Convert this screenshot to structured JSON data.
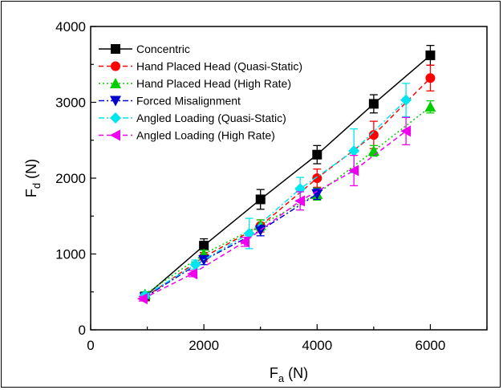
{
  "chart_data": {
    "type": "line",
    "xlabel_main": "F",
    "xlabel_sub": "a",
    "xlabel_unit": " (N)",
    "ylabel_main": "F",
    "ylabel_sub": "d",
    "ylabel_unit": " (N)",
    "xlim": [
      0,
      7000
    ],
    "ylim": [
      0,
      4000
    ],
    "xticks": [
      0,
      2000,
      4000,
      6000
    ],
    "yticks": [
      0,
      1000,
      2000,
      3000,
      4000
    ],
    "grid": false,
    "legend_position": "top-left",
    "series": [
      {
        "name": "Concentric",
        "color": "#000000",
        "marker": "square",
        "dash": "none",
        "x": [
          960,
          2000,
          3000,
          4000,
          5000,
          6000
        ],
        "y": [
          440,
          1110,
          1720,
          2310,
          2980,
          3620
        ],
        "err": [
          40,
          90,
          130,
          120,
          120,
          130
        ]
      },
      {
        "name": "Hand Placed Head (Quasi-Static)",
        "color": "#ff0000",
        "marker": "circle",
        "dash": "dashed",
        "x": [
          960,
          2000,
          3000,
          4000,
          5000,
          6000
        ],
        "y": [
          430,
          960,
          1370,
          2000,
          2570,
          3320
        ],
        "err": [
          30,
          60,
          80,
          120,
          180,
          170
        ]
      },
      {
        "name": "Hand Placed Head (High Rate)",
        "color": "#00cc00",
        "marker": "triangle-up",
        "dash": "dotted",
        "x": [
          960,
          2000,
          3000,
          4000,
          5000,
          6000
        ],
        "y": [
          470,
          1000,
          1380,
          1790,
          2360,
          2940
        ],
        "err": [
          30,
          50,
          70,
          80,
          70,
          80
        ]
      },
      {
        "name": "Forced Misalignment",
        "color": "#0000cc",
        "marker": "triangle-down",
        "dash": "dashdot",
        "x": [
          960,
          2000,
          3000,
          4000
        ],
        "y": [
          430,
          920,
          1310,
          1790
        ],
        "err": [
          30,
          60,
          70,
          70
        ]
      },
      {
        "name": "Angled Loading (Quasi-Static)",
        "color": "#00e5ee",
        "marker": "diamond",
        "dash": "dashdot",
        "x": [
          960,
          1850,
          2800,
          3700,
          4650,
          5570
        ],
        "y": [
          450,
          860,
          1270,
          1860,
          2360,
          3030
        ],
        "err": [
          30,
          60,
          200,
          150,
          290,
          220
        ]
      },
      {
        "name": "Angled Loading (High Rate)",
        "color": "#ee00ee",
        "marker": "triangle-left",
        "dash": "dashed",
        "x": [
          920,
          1800,
          2720,
          3700,
          4650,
          5570
        ],
        "y": [
          410,
          740,
          1160,
          1700,
          2100,
          2620
        ],
        "err": [
          30,
          40,
          60,
          120,
          200,
          180
        ]
      }
    ]
  }
}
